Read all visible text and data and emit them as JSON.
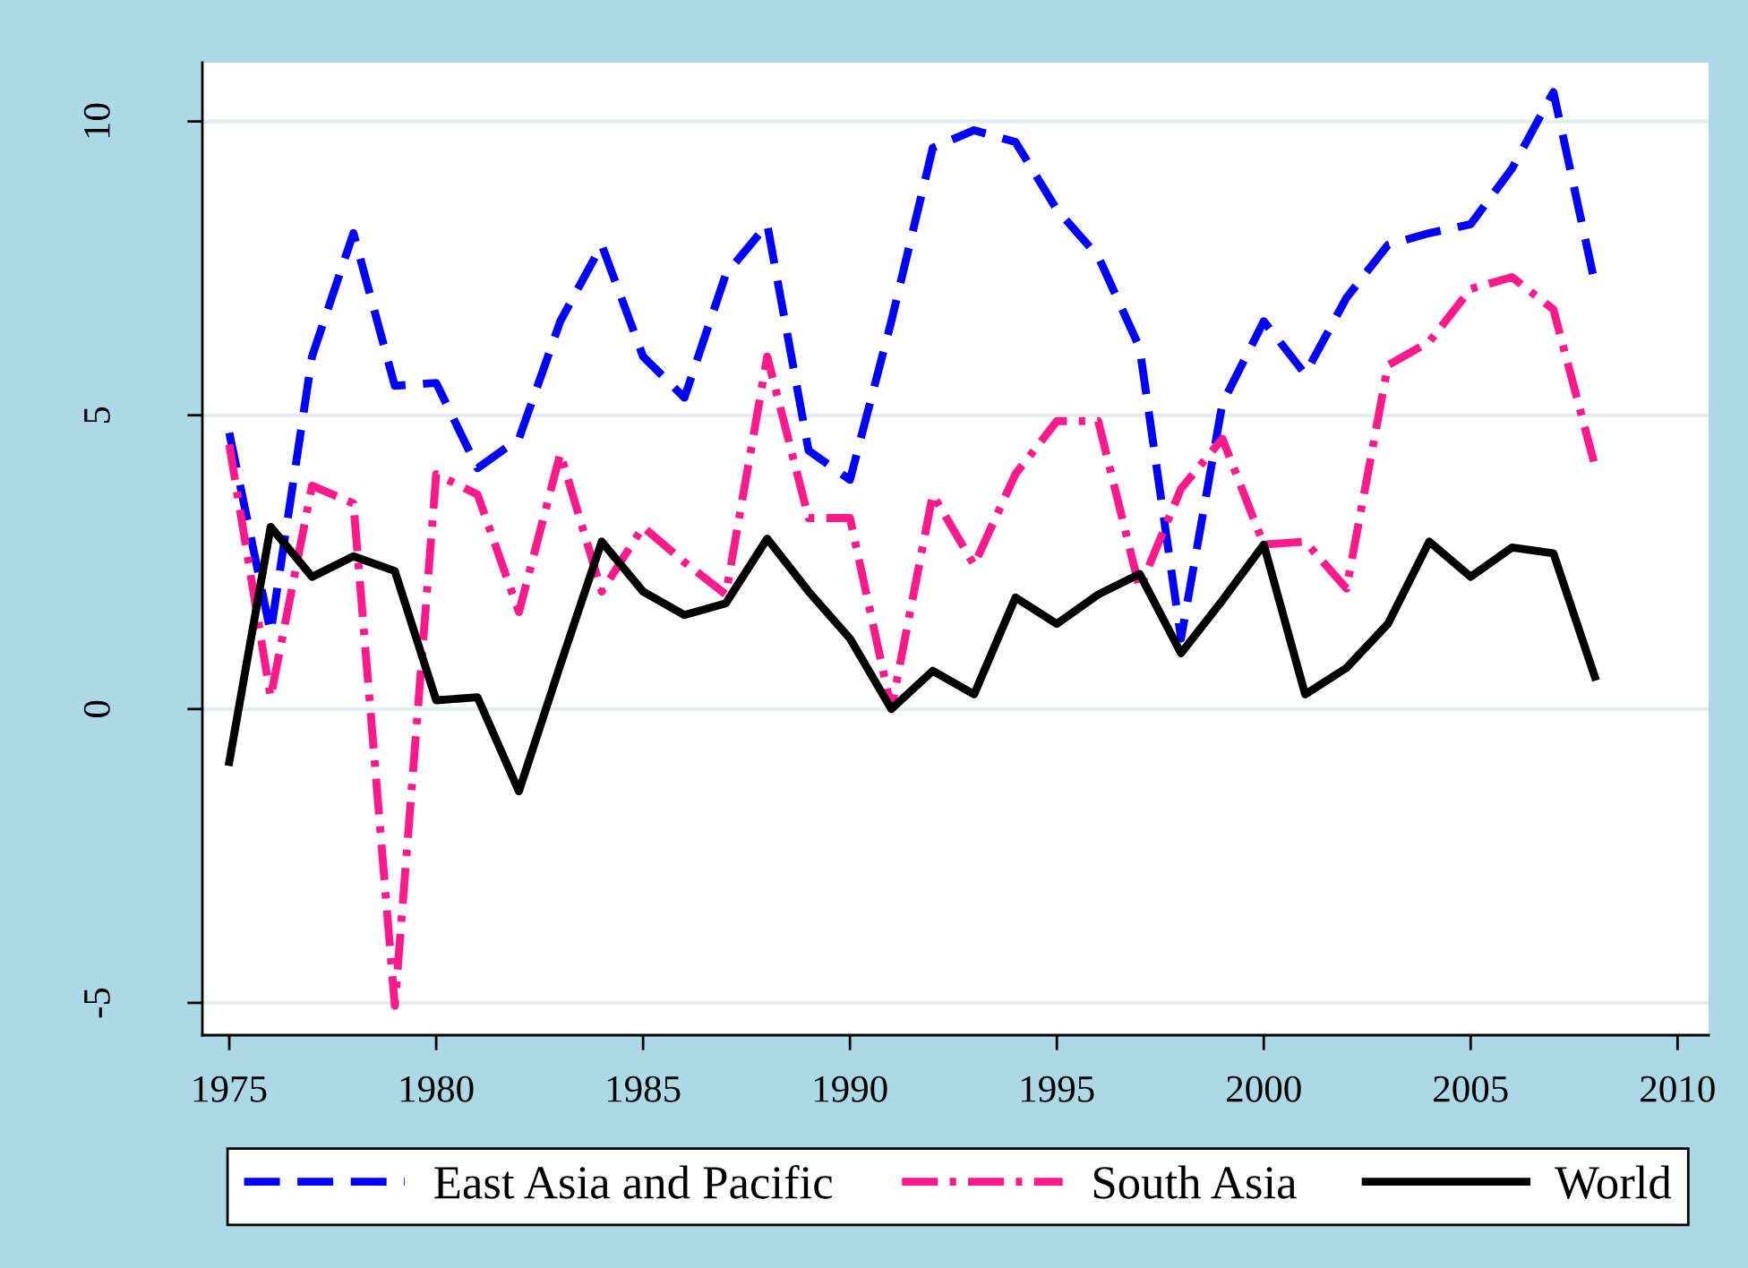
{
  "chart_data": {
    "type": "line",
    "x": [
      1975,
      1976,
      1977,
      1978,
      1979,
      1980,
      1981,
      1982,
      1983,
      1984,
      1985,
      1986,
      1987,
      1988,
      1989,
      1990,
      1991,
      1992,
      1993,
      1994,
      1995,
      1996,
      1997,
      1998,
      1999,
      2000,
      2001,
      2002,
      2003,
      2004,
      2005,
      2006,
      2007,
      2008
    ],
    "series": [
      {
        "name": "East Asia and Pacific",
        "color": "#0000ff",
        "line_style": "dashed",
        "values": [
          4.7,
          1.3,
          6.0,
          8.1,
          5.5,
          5.55,
          4.1,
          4.6,
          6.6,
          7.9,
          6.0,
          5.3,
          7.4,
          8.25,
          4.4,
          3.9,
          6.6,
          9.55,
          9.85,
          9.65,
          8.5,
          7.7,
          6.15,
          1.2,
          5.2,
          6.6,
          5.7,
          7.0,
          7.9,
          8.1,
          8.25,
          9.2,
          10.5,
          7.25
        ]
      },
      {
        "name": "South Asia",
        "color": "#ff1a8c",
        "line_style": "dashdot",
        "values": [
          4.5,
          0.2,
          3.8,
          3.5,
          -5.05,
          4.0,
          3.65,
          1.65,
          4.35,
          2.0,
          3.1,
          2.5,
          1.95,
          6.0,
          3.25,
          3.25,
          0.0,
          3.65,
          2.45,
          4.0,
          4.9,
          4.9,
          2.05,
          3.75,
          4.6,
          2.8,
          2.85,
          2.05,
          5.85,
          6.25,
          7.15,
          7.35,
          6.8,
          4.15
        ]
      },
      {
        "name": "World",
        "color": "#000000",
        "line_style": "solid",
        "values": [
          -0.9,
          3.1,
          2.25,
          2.6,
          2.35,
          0.15,
          0.2,
          -1.4,
          0.75,
          2.85,
          2.0,
          1.6,
          1.8,
          2.9,
          2.0,
          1.2,
          0.0,
          0.65,
          0.25,
          1.9,
          1.45,
          1.95,
          2.3,
          0.95,
          1.85,
          2.8,
          0.25,
          0.7,
          1.45,
          2.85,
          2.25,
          2.75,
          2.65,
          0.55
        ]
      }
    ],
    "xlim": [
      1974.35,
      2010.75
    ],
    "xticks": [
      1975,
      1980,
      1985,
      1990,
      1995,
      2000,
      2005,
      2010
    ],
    "ylim": [
      -5.55,
      11.0
    ],
    "yticks": [
      -5,
      0,
      5,
      10
    ],
    "grid": "y",
    "legend": "bottom"
  }
}
